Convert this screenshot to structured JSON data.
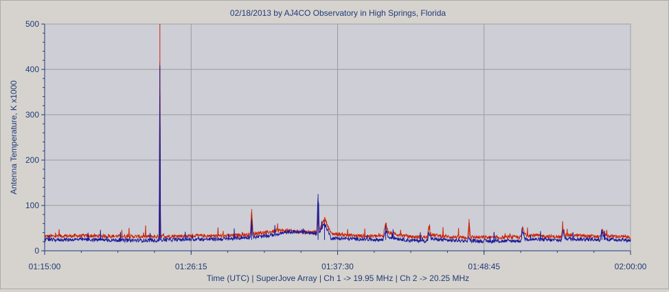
{
  "chart_data": {
    "type": "line",
    "title": "02/18/2013  by  AJ4CO Observatory  in  High Springs, Florida",
    "xlabel": "Time (UTC)  |  SuperJove Array  |  Ch 1 -> 19.95 MHz  |  Ch 2 -> 20.25 MHz",
    "ylabel": "Antenna Temperature, K x1000",
    "x_unit": "minutes after 01:15:00 UTC",
    "xlim": [
      0,
      45
    ],
    "ylim": [
      0,
      500
    ],
    "x_ticks": [
      {
        "value": 0,
        "label": "01:15:00"
      },
      {
        "value": 11.25,
        "label": "01:26:15"
      },
      {
        "value": 22.5,
        "label": "01:37:30"
      },
      {
        "value": 33.75,
        "label": "01:48:45"
      },
      {
        "value": 45,
        "label": "02:00:00"
      }
    ],
    "y_ticks": [
      {
        "value": 0,
        "label": "0"
      },
      {
        "value": 100,
        "label": "100"
      },
      {
        "value": 200,
        "label": "200"
      },
      {
        "value": 300,
        "label": "300"
      },
      {
        "value": 400,
        "label": "400"
      },
      {
        "value": 500,
        "label": "500"
      }
    ],
    "grid": true,
    "legend": "none",
    "series": [
      {
        "color": "#cc2200",
        "baseline": 32,
        "points": [
          [
            0,
            32
          ],
          [
            3,
            33
          ],
          [
            6,
            32
          ],
          [
            8.8,
            31
          ],
          [
            8.85,
            500
          ],
          [
            8.9,
            32
          ],
          [
            11.3,
            33
          ],
          [
            14,
            33
          ],
          [
            15.8,
            36
          ],
          [
            15.9,
            92
          ],
          [
            16.0,
            38
          ],
          [
            17,
            40
          ],
          [
            18,
            45
          ],
          [
            20,
            42
          ],
          [
            20.9,
            40
          ],
          [
            21,
            88
          ],
          [
            21.1,
            45
          ],
          [
            21.5,
            72
          ],
          [
            22,
            38
          ],
          [
            24,
            33
          ],
          [
            26,
            32
          ],
          [
            26.2,
            62
          ],
          [
            26.4,
            40
          ],
          [
            28,
            31
          ],
          [
            29.4,
            30
          ],
          [
            29.5,
            52
          ],
          [
            29.7,
            35
          ],
          [
            31,
            31
          ],
          [
            32.5,
            29
          ],
          [
            32.6,
            70
          ],
          [
            32.7,
            30
          ],
          [
            34.5,
            29
          ],
          [
            36.6,
            30
          ],
          [
            36.7,
            52
          ],
          [
            36.9,
            35
          ],
          [
            39.7,
            30
          ],
          [
            39.8,
            50
          ],
          [
            40,
            35
          ],
          [
            42.7,
            31
          ],
          [
            42.8,
            48
          ],
          [
            43,
            33
          ],
          [
            45,
            30
          ]
        ]
      },
      {
        "color": "#1a1a9a",
        "baseline": 24,
        "points": [
          [
            0,
            24
          ],
          [
            3,
            25
          ],
          [
            6,
            23
          ],
          [
            8.8,
            23
          ],
          [
            8.85,
            408
          ],
          [
            8.9,
            24
          ],
          [
            11.3,
            25
          ],
          [
            14,
            26
          ],
          [
            15.8,
            30
          ],
          [
            15.9,
            70
          ],
          [
            16.0,
            30
          ],
          [
            17,
            32
          ],
          [
            18,
            38
          ],
          [
            19,
            42
          ],
          [
            20,
            40
          ],
          [
            20.9,
            38
          ],
          [
            21,
            125
          ],
          [
            21.1,
            40
          ],
          [
            21.5,
            60
          ],
          [
            22,
            28
          ],
          [
            24,
            26
          ],
          [
            26,
            24
          ],
          [
            26.2,
            48
          ],
          [
            26.4,
            30
          ],
          [
            28,
            23
          ],
          [
            29.4,
            22
          ],
          [
            29.5,
            40
          ],
          [
            29.7,
            26
          ],
          [
            31,
            23
          ],
          [
            32.5,
            22
          ],
          [
            32.6,
            32
          ],
          [
            32.7,
            22
          ],
          [
            34.5,
            21
          ],
          [
            36.6,
            22
          ],
          [
            36.7,
            44
          ],
          [
            36.9,
            26
          ],
          [
            39.7,
            23
          ],
          [
            39.8,
            44
          ],
          [
            40,
            27
          ],
          [
            42.7,
            24
          ],
          [
            42.8,
            45
          ],
          [
            43,
            26
          ],
          [
            45,
            23
          ]
        ]
      }
    ]
  }
}
